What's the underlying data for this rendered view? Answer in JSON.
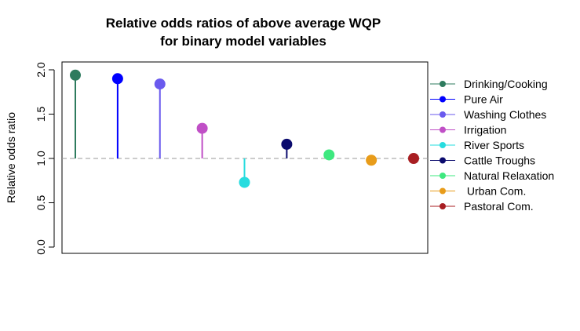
{
  "chart_data": {
    "type": "lollipop",
    "title_lines": [
      "Relative odds ratios of above average WQP",
      "for binary model variables"
    ],
    "xlabel": "",
    "ylabel": "Relative odds ratio",
    "ylim": [
      0.0,
      2.0
    ],
    "yticks": [
      "0.0",
      "0.5",
      "1.0",
      "1.5",
      "2.0"
    ],
    "reference_line": 1.0,
    "grid": false,
    "legend_position": "right, outside plot",
    "series": [
      {
        "name": "Drinking/Cooking",
        "value": 1.94,
        "color": "#2e7b5e"
      },
      {
        "name": "Pure Air",
        "value": 1.9,
        "color": "#0000ff"
      },
      {
        "name": "Washing Clothes",
        "value": 1.84,
        "color": "#6a5aee"
      },
      {
        "name": "Irrigation",
        "value": 1.34,
        "color": "#c04fc6"
      },
      {
        "name": "River Sports",
        "value": 0.73,
        "color": "#26dcdf"
      },
      {
        "name": "Cattle Troughs",
        "value": 1.16,
        "color": "#0b0b6e"
      },
      {
        "name": "Natural Relaxation",
        "value": 1.04,
        "color": "#3ee87f"
      },
      {
        "name": " Urban Com.",
        "value": 0.98,
        "color": "#e89c1a"
      },
      {
        "name": "Pastoral Com.",
        "value": 1.0,
        "color": "#a81e22"
      }
    ]
  }
}
